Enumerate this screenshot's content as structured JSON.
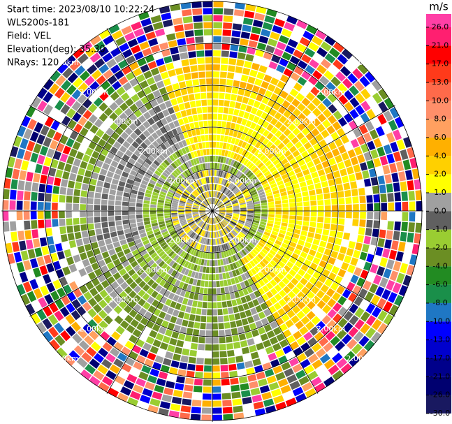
{
  "chart_data": {
    "type": "ppi",
    "header": [
      "Start time: 2023/08/10 10:22:24",
      "WLS200s-181",
      "Field: VEL",
      "Elevation(deg): 35.30",
      "NRays: 120"
    ],
    "ring_labels": [
      "2.00km",
      "2.00km",
      "2.00km",
      "2.00km",
      "2.00km",
      "2.00km",
      "2.00km",
      "2.00km",
      "2.00km",
      "2.00km",
      "2.00km",
      "2.00km",
      "2.00km",
      "2.00km",
      "2.00km",
      "2.00km",
      "2.00km",
      "2.00km",
      "2.00km",
      "2.00km"
    ],
    "colorbar": {
      "unit": "m/s",
      "ticks": [
        {
          "value": 26,
          "label": "26.0"
        },
        {
          "value": 21,
          "label": "21.0"
        },
        {
          "value": 17,
          "label": "17.0"
        },
        {
          "value": 13,
          "label": "13.0"
        },
        {
          "value": 10,
          "label": "10.0"
        },
        {
          "value": 8,
          "label": "8.0"
        },
        {
          "value": 6,
          "label": "6.0"
        },
        {
          "value": 4,
          "label": "4.0"
        },
        {
          "value": 2,
          "label": "2.0"
        },
        {
          "value": 1,
          "label": "1.0"
        },
        {
          "value": 0,
          "label": "0.0"
        },
        {
          "value": -1,
          "label": "-1.0"
        },
        {
          "value": -2,
          "label": "-2.0"
        },
        {
          "value": -4,
          "label": "-4.0"
        },
        {
          "value": -6,
          "label": "-6.0"
        },
        {
          "value": -8,
          "label": "-8.0"
        },
        {
          "value": -10,
          "label": "-10.0"
        },
        {
          "value": -13,
          "label": "-13.0"
        },
        {
          "value": -17,
          "label": "-17.0"
        },
        {
          "value": -21,
          "label": "-21.0"
        },
        {
          "value": -26,
          "label": "-26.0"
        },
        {
          "value": -30,
          "label": "-30.0"
        }
      ],
      "colors": [
        "#ff3fa6",
        "#ff1f70",
        "#ff0000",
        "#ff3a1a",
        "#ff6a4a",
        "#ff8f6a",
        "#ffa060",
        "#ffb000",
        "#ffd000",
        "#ffff00",
        "#a0a0a0",
        "#606060",
        "#9acd32",
        "#6b8e23",
        "#228b22",
        "#1a8f4a",
        "#1f77c4",
        "#0000ff",
        "#0000cd",
        "#00008b",
        "#000070",
        "#191960"
      ]
    }
  }
}
